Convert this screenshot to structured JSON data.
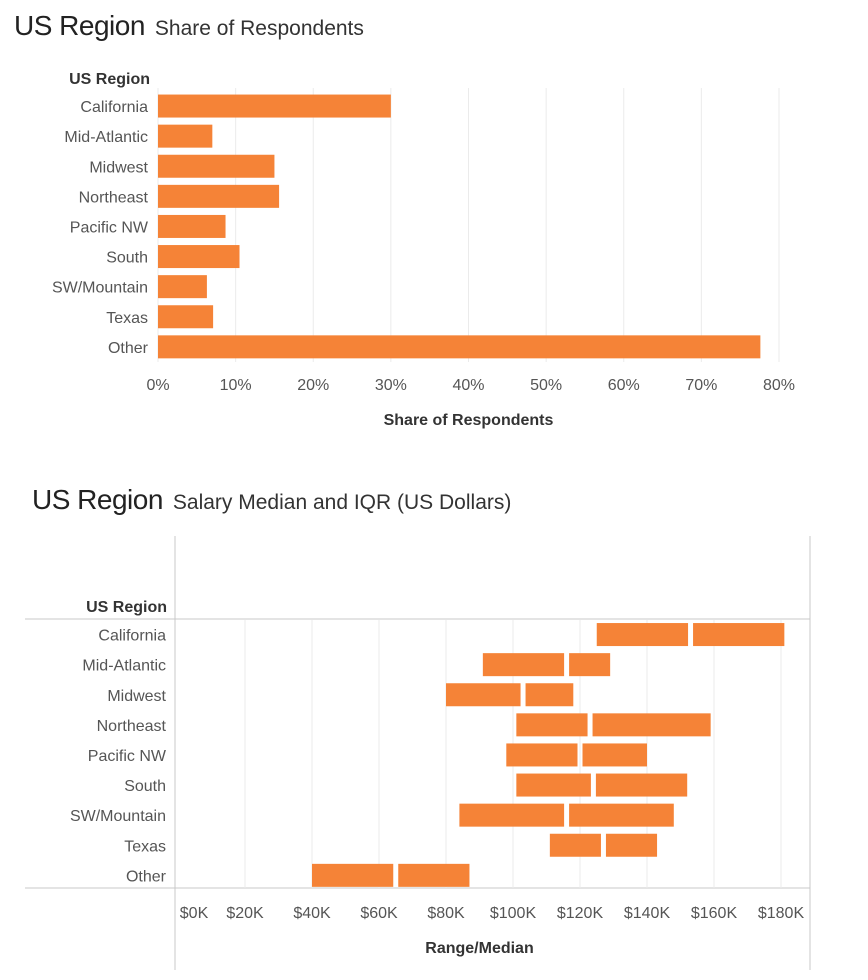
{
  "colors": {
    "bar": "#f58337",
    "grid": "#ebebeb",
    "axis": "#c8c8c8"
  },
  "chart1_title": {
    "main": "US Region",
    "sub": "Share of Respondents"
  },
  "chart2_title": {
    "main": "US Region",
    "sub": "Salary Median and IQR (US Dollars)"
  },
  "chart_data": [
    {
      "type": "bar",
      "orientation": "horizontal",
      "title": "US Region",
      "subtitle": "Share of Respondents",
      "row_header": "US Region",
      "xlabel": "Share of Respondents",
      "categories": [
        "California",
        "Mid-Atlantic",
        "Midwest",
        "Northeast",
        "Pacific NW",
        "South",
        "SW/Mountain",
        "Texas",
        "Other"
      ],
      "values": [
        30,
        7,
        15,
        15.6,
        8.7,
        10.5,
        6.3,
        7.1,
        77.6
      ],
      "xlim": [
        0,
        80
      ],
      "xticks": [
        0,
        10,
        20,
        30,
        40,
        50,
        60,
        70,
        80
      ],
      "xtick_labels": [
        "0%",
        "10%",
        "20%",
        "30%",
        "40%",
        "50%",
        "60%",
        "70%",
        "80%"
      ],
      "grid": true
    },
    {
      "type": "bar",
      "orientation": "horizontal",
      "subtype": "range",
      "title": "US Region",
      "subtitle": "Salary Median and IQR (US Dollars)",
      "row_header": "US Region",
      "xlabel": "Range/Median",
      "categories": [
        "California",
        "Mid-Atlantic",
        "Midwest",
        "Northeast",
        "Pacific NW",
        "South",
        "SW/Mountain",
        "Texas",
        "Other"
      ],
      "q1": [
        125000,
        91000,
        80000,
        101000,
        98000,
        101000,
        84000,
        111000,
        40000
      ],
      "median": [
        153000,
        116000,
        103000,
        123000,
        120000,
        124000,
        116000,
        127000,
        65000
      ],
      "q3": [
        181000,
        129000,
        118000,
        159000,
        140000,
        152000,
        148000,
        143000,
        87000
      ],
      "xlim": [
        0,
        180000
      ],
      "xticks": [
        0,
        20000,
        40000,
        60000,
        80000,
        100000,
        120000,
        140000,
        160000,
        180000
      ],
      "xtick_labels": [
        "$0K",
        "$20K",
        "$40K",
        "$60K",
        "$80K",
        "$100K",
        "$120K",
        "$140K",
        "$160K",
        "$180K"
      ],
      "grid": true
    }
  ]
}
